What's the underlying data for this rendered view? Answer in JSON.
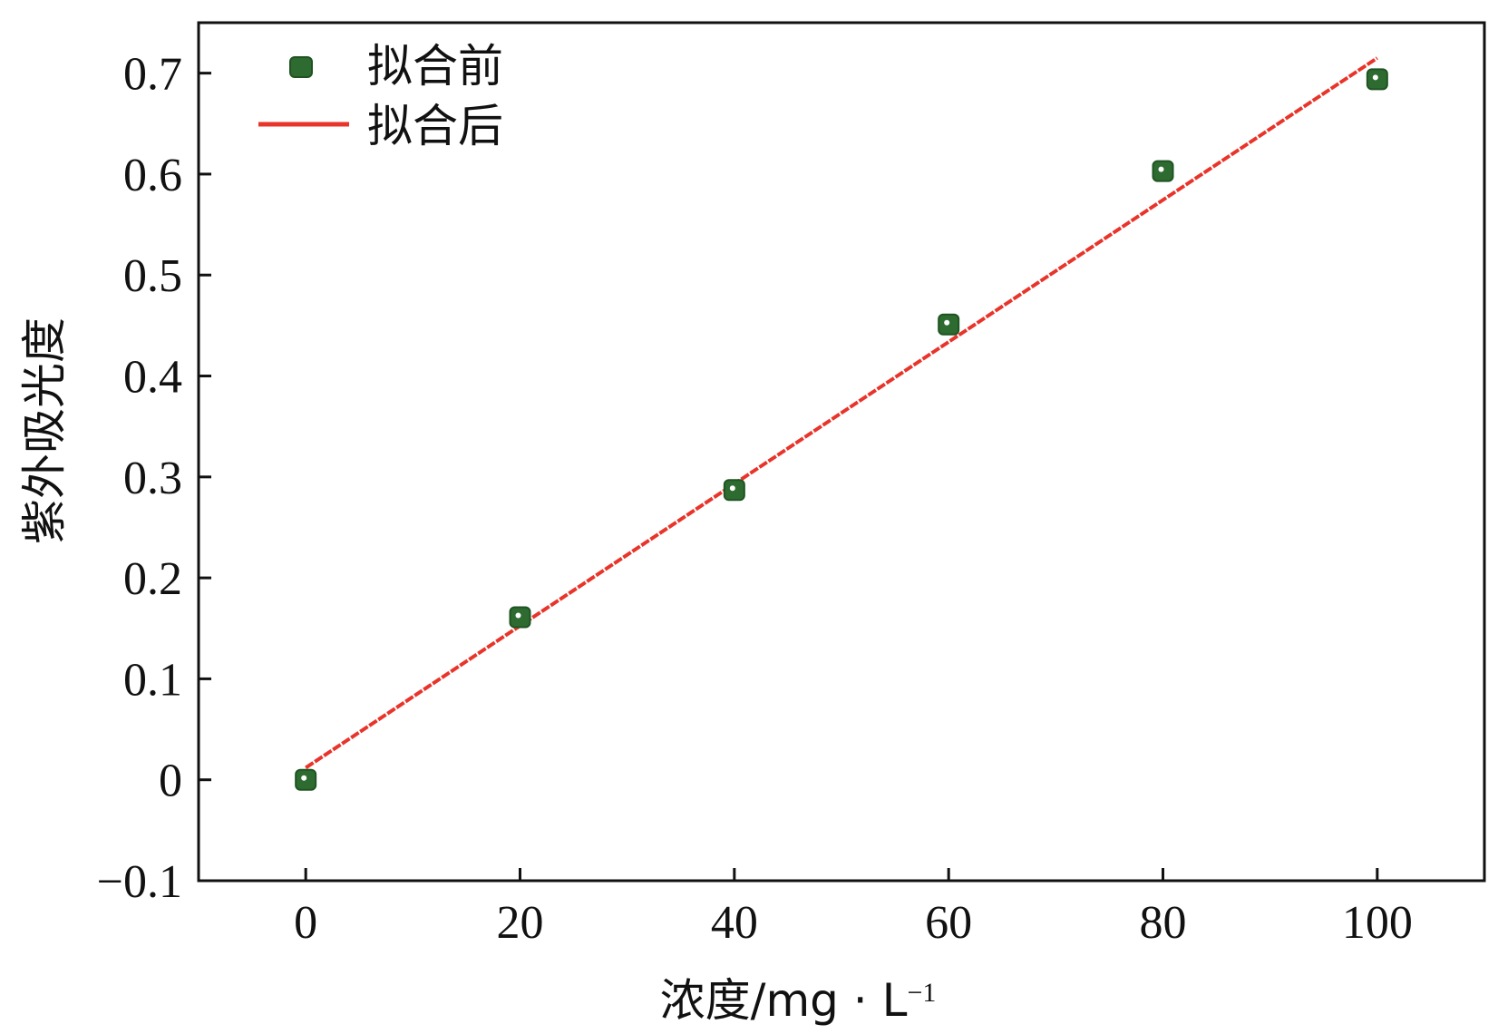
{
  "chart_data": {
    "type": "scatter",
    "title": "",
    "xlabel": {
      "prefix": "浓度/mg · L",
      "superscript": "−1"
    },
    "ylabel": "紫外吸光度",
    "xlim": [
      -10,
      110
    ],
    "ylim": [
      -0.1,
      0.75
    ],
    "xticks": [
      0,
      20,
      40,
      60,
      80,
      100
    ],
    "yticks": [
      -0.1,
      0,
      0.1,
      0.2,
      0.3,
      0.4,
      0.5,
      0.6,
      0.7
    ],
    "xtick_labels": [
      "0",
      "20",
      "40",
      "60",
      "80",
      "100"
    ],
    "ytick_labels": [
      "−0.1",
      "0",
      "0.1",
      "0.2",
      "0.3",
      "0.4",
      "0.5",
      "0.6",
      "0.7"
    ],
    "legend_position": "top-left",
    "grid": false,
    "series": [
      {
        "name": "拟合前",
        "kind": "scatter",
        "color": "#2e6b30",
        "x": [
          0,
          20,
          40,
          60,
          80,
          100
        ],
        "y": [
          0.0,
          0.161,
          0.287,
          0.451,
          0.603,
          0.694
        ]
      },
      {
        "name": "拟合后",
        "kind": "line",
        "color": "#e8342a",
        "x": [
          0,
          100
        ],
        "y": [
          0.012,
          0.715
        ]
      }
    ]
  }
}
